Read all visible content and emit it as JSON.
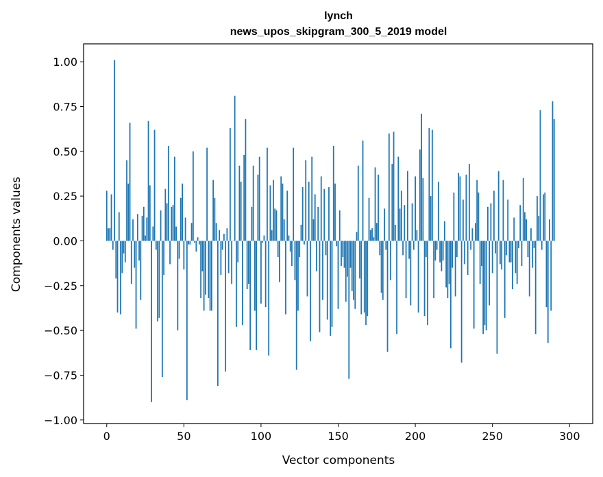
{
  "chart_data": {
    "type": "bar",
    "title_line1": "lynch",
    "title_line2": "news_upos_skipgram_300_5_2019 model",
    "xlabel": "Vector components",
    "ylabel": "Components values",
    "xlim": [
      -15,
      315
    ],
    "ylim": [
      -1.02,
      1.1
    ],
    "x_ticks": [
      0,
      50,
      100,
      150,
      200,
      250,
      300
    ],
    "y_ticks": [
      -1.0,
      -0.75,
      -0.5,
      -0.25,
      0.0,
      0.25,
      0.5,
      0.75,
      1.0
    ],
    "x_tick_labels": [
      "0",
      "50",
      "100",
      "150",
      "200",
      "250",
      "300"
    ],
    "y_tick_labels": [
      "−1.00",
      "−0.75",
      "−0.50",
      "−0.25",
      "0.00",
      "0.25",
      "0.50",
      "0.75",
      "1.00"
    ],
    "bar_color": "#1f77b4",
    "values": [
      0.28,
      0.07,
      0.07,
      0.26,
      -0.05,
      1.01,
      -0.21,
      -0.4,
      0.16,
      -0.41,
      -0.18,
      -0.07,
      -0.12,
      0.45,
      0.32,
      0.66,
      -0.24,
      0.12,
      -0.15,
      -0.49,
      0.15,
      -0.11,
      -0.33,
      0.14,
      0.19,
      0.03,
      0.13,
      0.67,
      0.31,
      -0.9,
      0.08,
      0.62,
      -0.05,
      -0.45,
      -0.43,
      0.17,
      -0.76,
      -0.19,
      0.29,
      0.21,
      0.53,
      -0.13,
      0.19,
      0.2,
      0.47,
      0.08,
      -0.5,
      -0.1,
      0.24,
      0.32,
      -0.16,
      0.13,
      -0.89,
      -0.02,
      -0.02,
      0.1,
      0.5,
      -0.01,
      -0.06,
      0.02,
      -0.02,
      -0.32,
      -0.17,
      -0.39,
      -0.3,
      0.52,
      -0.32,
      -0.39,
      -0.39,
      0.34,
      0.24,
      0.1,
      -0.81,
      0.06,
      -0.19,
      -0.05,
      0.04,
      -0.73,
      0.07,
      -0.18,
      0.63,
      -0.24,
      0.0,
      0.81,
      -0.48,
      -0.12,
      0.42,
      0.33,
      -0.47,
      0.48,
      0.68,
      -0.27,
      -0.24,
      -0.61,
      0.19,
      0.42,
      -0.39,
      -0.61,
      0.37,
      0.47,
      -0.35,
      -0.01,
      0.03,
      -0.37,
      0.52,
      -0.64,
      0.31,
      0.06,
      0.34,
      0.18,
      0.17,
      -0.09,
      -0.23,
      0.36,
      0.32,
      0.12,
      -0.41,
      0.28,
      0.03,
      -0.06,
      -0.14,
      0.52,
      -0.22,
      -0.72,
      -0.39,
      -0.09,
      0.09,
      0.3,
      -0.02,
      0.45,
      -0.31,
      0.33,
      -0.56,
      0.47,
      0.12,
      0.26,
      -0.17,
      0.19,
      -0.51,
      0.36,
      -0.33,
      0.29,
      -0.08,
      -0.44,
      0.3,
      -0.53,
      -0.48,
      0.53,
      0.32,
      -0.03,
      -0.38,
      0.17,
      -0.14,
      -0.09,
      -0.15,
      -0.34,
      -0.2,
      -0.77,
      -0.15,
      -0.28,
      -0.33,
      -0.38,
      0.05,
      0.42,
      -0.21,
      -0.41,
      0.56,
      -0.4,
      -0.47,
      -0.42,
      0.24,
      0.06,
      0.07,
      0.02,
      0.41,
      0.1,
      0.37,
      -0.08,
      -0.29,
      -0.33,
      0.18,
      -0.05,
      -0.62,
      0.6,
      -0.22,
      0.43,
      0.61,
      0.09,
      -0.52,
      0.47,
      0.18,
      0.28,
      -0.08,
      0.2,
      -0.32,
      0.39,
      -0.1,
      -0.36,
      0.21,
      -0.05,
      0.36,
      0.06,
      -0.4,
      0.51,
      0.71,
      0.35,
      -0.42,
      -0.09,
      -0.47,
      0.63,
      0.25,
      0.62,
      -0.32,
      -0.11,
      -0.05,
      0.33,
      -0.12,
      -0.17,
      -0.11,
      0.11,
      -0.26,
      -0.32,
      -0.24,
      -0.6,
      -0.15,
      0.27,
      -0.31,
      -0.09,
      0.38,
      0.36,
      -0.68,
      0.23,
      -0.13,
      0.37,
      -0.19,
      0.43,
      -0.05,
      0.07,
      -0.49,
      0.1,
      0.34,
      0.27,
      -0.24,
      -0.14,
      -0.52,
      -0.47,
      -0.5,
      0.19,
      -0.36,
      0.21,
      -0.18,
      0.28,
      -0.07,
      -0.63,
      0.39,
      -0.13,
      -0.16,
      0.34,
      -0.43,
      -0.08,
      0.23,
      -0.12,
      -0.12,
      -0.27,
      0.13,
      -0.18,
      -0.24,
      -0.04,
      0.2,
      -0.14,
      0.35,
      0.16,
      0.12,
      -0.09,
      -0.31,
      0.07,
      -0.15,
      -0.04,
      -0.52,
      0.25,
      0.14,
      0.73,
      -0.05,
      0.26,
      0.27,
      -0.37,
      -0.57,
      0.12,
      -0.39,
      0.78,
      0.68
    ]
  }
}
